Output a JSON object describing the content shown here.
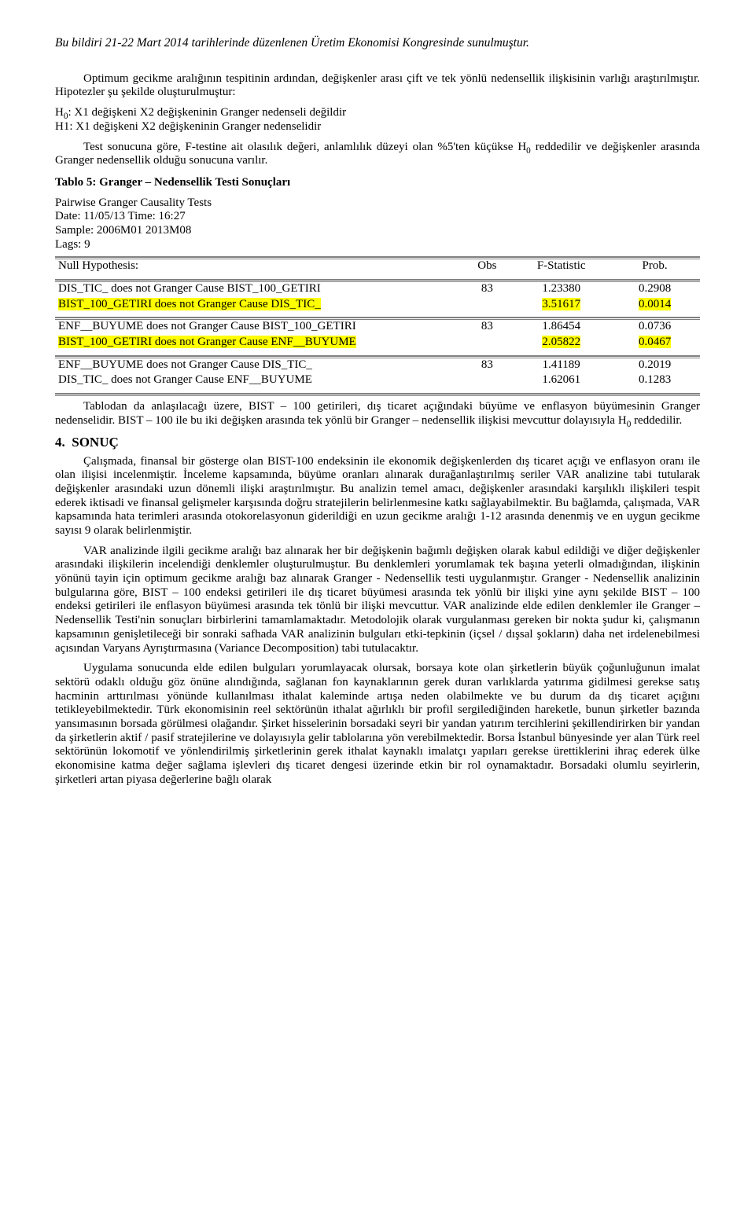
{
  "header_note": "Bu bildiri 21-22 Mart 2014 tarihlerinde düzenlenen Üretim Ekonomisi Kongresinde sunulmuştur.",
  "p_intro": "Optimum gecikme aralığının tespitinin ardından, değişkenler arası çift ve tek yönlü nedensellik ilişkisinin varlığı araştırılmıştır. Hipotezler şu şekilde oluşturulmuştur:",
  "h0_prefix": "H",
  "h0_sub": "0",
  "h0_text": ": X1 değişkeni X2 değişkeninin Granger nedenseli değildir",
  "h1_text": "H1: X1 değişkeni X2 değişkeninin Granger nedenselidir",
  "p_test": "Test sonucuna göre, F-testine ait olasılık değeri, anlamlılık düzeyi olan %5'ten küçükse H",
  "p_test_sub": "0",
  "p_test_rest": " reddedilir ve değişkenler arasında Granger nedensellik olduğu sonucuna varılır.",
  "table_title": "Tablo 5: Granger – Nedensellik Testi Sonuçları",
  "meta1": "Pairwise Granger Causality Tests",
  "meta2": "Date: 11/05/13   Time: 16:27",
  "meta3": "Sample: 2006M01 2013M08",
  "meta4": "Lags: 9",
  "cols": {
    "c1": " Null Hypothesis:",
    "c2": "Obs",
    "c3": "F-Statistic",
    "c4": "Prob."
  },
  "rows": [
    {
      "h": " DIS_TIC_ does not Granger Cause BIST_100_GETIRI",
      "obs": "83",
      "f": "1.23380",
      "p": "0.2908",
      "hl": false
    },
    {
      "h": " BIST_100_GETIRI does not Granger Cause DIS_TIC_",
      "obs": "",
      "f": "3.51617",
      "p": "0.0014",
      "hl": true
    },
    {
      "h": " ENF__BUYUME does not Granger Cause BIST_100_GETIRI",
      "obs": "83",
      "f": "1.86454",
      "p": "0.0736",
      "hl": false
    },
    {
      "h": " BIST_100_GETIRI does not Granger Cause ENF__BUYUME",
      "obs": "",
      "f": "2.05822",
      "p": "0.0467",
      "hl": true
    },
    {
      "h": " ENF__BUYUME does not Granger Cause DIS_TIC_",
      "obs": "83",
      "f": "1.41189",
      "p": "0.2019",
      "hl": false
    },
    {
      "h": " DIS_TIC_ does not Granger Cause ENF__BUYUME",
      "obs": "",
      "f": "1.62061",
      "p": "0.1283",
      "hl": false
    }
  ],
  "p_tablo": "Tablodan da anlaşılacağı üzere, BIST – 100 getirileri, dış ticaret açığındaki büyüme ve enflasyon büyümesinin Granger nedenselidir. BIST – 100 ile bu iki değişken arasında tek yönlü bir Granger – nedensellik ilişkisi mevcuttur dolayısıyla H",
  "p_tablo_sub": "0",
  "p_tablo_rest": " reddedilir.",
  "sect_num": "4.",
  "sect_title": "SONUÇ",
  "s1": "Çalışmada, finansal bir gösterge olan BIST-100 endeksinin ile ekonomik değişkenlerden dış ticaret açığı ve enflasyon oranı ile olan ilişisi incelenmiştir. İnceleme kapsamında, büyüme oranları alınarak durağanlaştırılmış seriler VAR analizine tabi tutularak değişkenler arasındaki uzun dönemli ilişki araştırılmıştır. Bu analizin temel amacı, değişkenler arasındaki karşılıklı ilişkileri tespit ederek iktisadi ve finansal gelişmeler karşısında doğru stratejilerin belirlenmesine katkı sağlayabilmektir. Bu bağlamda, çalışmada, VAR kapsamında hata terimleri arasında otokorelasyonun giderildiği en uzun gecikme aralığı 1-12 arasında denenmiş ve en uygun gecikme sayısı 9 olarak belirlenmiştir.",
  "s2": "VAR analizinde ilgili gecikme aralığı baz alınarak her bir değişkenin bağımlı değişken olarak kabul edildiği ve diğer değişkenler arasındaki ilişkilerin incelendiği denklemler oluşturulmuştur. Bu denklemleri yorumlamak tek başına yeterli olmadığından, ilişkinin yönünü tayin için optimum gecikme aralığı baz alınarak Granger - Nedensellik testi uygulanmıştır. Granger - Nedensellik analizinin bulgularına göre, BIST – 100 endeksi getirileri ile dış ticaret büyümesi arasında tek yönlü bir ilişki yine aynı şekilde BIST – 100 endeksi getirileri ile enflasyon büyümesi arasında tek tönlü bir ilişki mevcuttur. VAR analizinde elde edilen denklemler ile Granger – Nedensellik Testi'nin sonuçları birbirlerini tamamlamaktadır. Metodolojik olarak vurgulanması gereken bir nokta şudur ki, çalışmanın kapsamının genişletileceği bir sonraki safhada VAR analizinin bulguları etki-tepkinin (içsel / dışsal şokların) daha net irdelenebilmesi açısından Varyans Ayrıştırmasına (Variance Decomposition) tabi tutulacaktır.",
  "s3": "Uygulama sonucunda elde edilen bulguları yorumlayacak olursak, borsaya kote olan şirketlerin büyük çoğunluğunun imalat sektörü odaklı olduğu göz önüne alındığında, sağlanan fon kaynaklarının gerek duran varlıklarda yatırıma gidilmesi gerekse satış hacminin arttırılması yönünde kullanılması ithalat kaleminde artışa neden olabilmekte ve bu durum da dış ticaret açığını tetikleyebilmektedir. Türk ekonomisinin reel sektörünün ithalat ağırlıklı bir profil sergilediğinden hareketle, bunun şirketler bazında yansımasının borsada görülmesi olağandır. Şirket hisselerinin borsadaki seyri bir yandan yatırım tercihlerini şekillendirirken bir yandan da şirketlerin aktif / pasif stratejilerine ve dolayısıyla gelir tablolarına yön verebilmektedir. Borsa İstanbul bünyesinde yer alan Türk reel sektörünün lokomotif ve yönlendirilmiş şirketlerinin gerek ithalat kaynaklı imalatçı yapıları gerekse ürettiklerini ihraç ederek ülke ekonomisine katma değer sağlama işlevleri dış ticaret dengesi üzerinde etkin bir rol oynamaktadır. Borsadaki olumlu seyirlerin, şirketleri artan piyasa değerlerine bağlı olarak"
}
